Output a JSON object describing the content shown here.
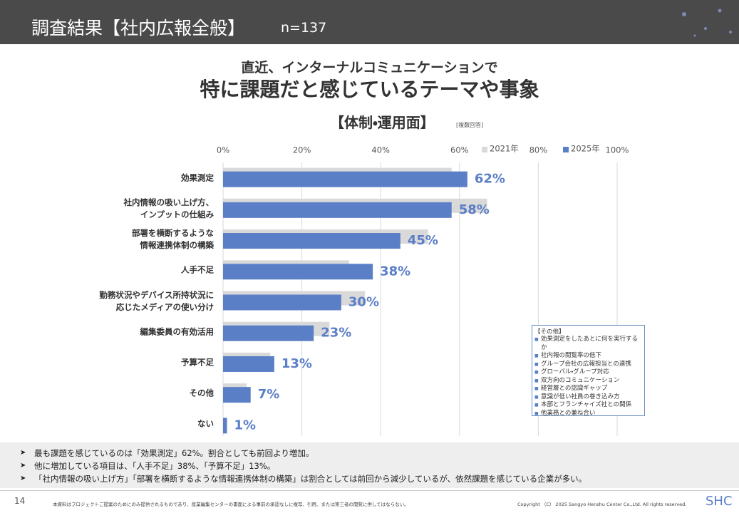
{
  "header": {
    "title": "調査結果【社内広報全般】",
    "n": "n=137"
  },
  "heading": {
    "line1": "直近、インターナルコミュニケーションで",
    "line2": "特に課題だと感じているテーマや事象"
  },
  "chart_data": {
    "type": "bar",
    "orientation": "horizontal",
    "title": "【体制・運用面】",
    "subtitle": "[複数回答]",
    "categories": [
      "効果測定",
      "社内情報の吸い上げ方、\nインプットの仕組み",
      "部署を横断するような\n情報連携体制の構築",
      "人手不足",
      "勤務状況やデバイス所持状況に\n応じたメディアの使い分け",
      "編集委員の有効活用",
      "予算不足",
      "その他",
      "ない"
    ],
    "series": [
      {
        "name": "2021年",
        "color": "#d9d9d9",
        "values": [
          58,
          67,
          52,
          32,
          36,
          27,
          12,
          6,
          0
        ]
      },
      {
        "name": "2025年",
        "color": "#5b7fc7",
        "values": [
          62,
          58,
          45,
          38,
          30,
          23,
          13,
          7,
          1
        ],
        "value_labels": [
          "62%",
          "58%",
          "45%",
          "38%",
          "30%",
          "23%",
          "13%",
          "7%",
          "1%"
        ]
      }
    ],
    "xlim": [
      0,
      100
    ],
    "xticks": [
      {
        "value": 0,
        "label": "0%"
      },
      {
        "value": 20,
        "label": "20%"
      },
      {
        "value": 40,
        "label": "40%"
      },
      {
        "value": 60,
        "label": "60%"
      },
      {
        "value": 80,
        "label": "80%"
      },
      {
        "value": 100,
        "label": "100%"
      }
    ],
    "grid": true,
    "legend": "top-right"
  },
  "note": {
    "title": "【その他】",
    "items": [
      "効果測定をしたあとに何を実行するか",
      "社内報の閲覧率の低下",
      "グループ会社の広報担当との連携",
      "グローバル・グループ対応",
      "双方向のコミュニケーション",
      "経営層との認識ギャップ",
      "意識が低い社員の巻き込み方",
      "本部とフランチャイズ社との関係",
      "他業務との兼ね合い"
    ]
  },
  "findings": [
    "最も課題を感じているのは「効果測定」62%。割合としても前回より増加。",
    "他に増加している項目は、「人手不足」38%、「予算不足」13%。",
    "「社内情報の吸い上げ方」「部署を横断するような情報連携体制の構築」は割合としては前回から減少しているが、依然課題を感じている企業が多い。"
  ],
  "footer": {
    "page": "14",
    "disclaimer": "本資料はプロジェクトご提案のためにのみ提供されるものであり、産業編集センターの書面による事前の承認なしに複写、引用、または第三者の閲覧に供してはならない。",
    "copyright": "Copyright （C） 2025 Sangyo Henshu Center Co.,Ltd. All rights reserved.",
    "logo": "SHC"
  }
}
